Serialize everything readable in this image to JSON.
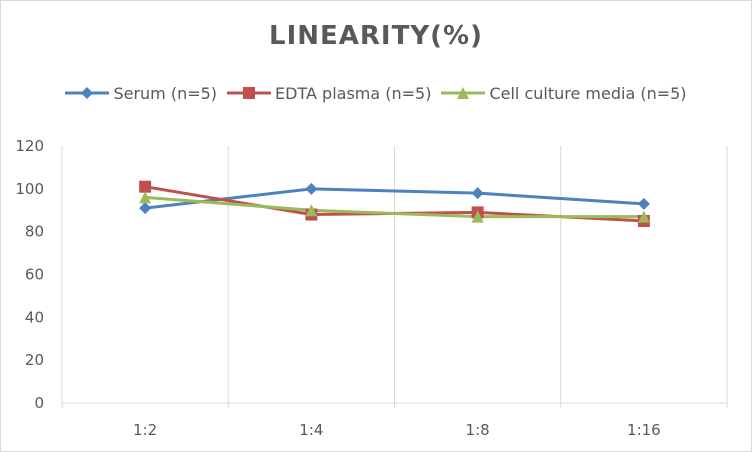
{
  "chart_data": {
    "type": "line",
    "title": "LINEARITY(%)",
    "xlabel": "",
    "ylabel": "",
    "categories": [
      "1:2",
      "1:4",
      "1:8",
      "1:16"
    ],
    "ylim": [
      0,
      120
    ],
    "yticks": [
      0,
      20,
      40,
      60,
      80,
      100,
      120
    ],
    "grid": "vertical",
    "legend_position": "top",
    "series": [
      {
        "name": "Serum (n=5)",
        "values": [
          91,
          100,
          98,
          93
        ],
        "color": "#4f81bd",
        "marker": "diamond"
      },
      {
        "name": "EDTA plasma (n=5)",
        "values": [
          101,
          88,
          89,
          85
        ],
        "color": "#c0504d",
        "marker": "square"
      },
      {
        "name": "Cell culture media (n=5)",
        "values": [
          96,
          90,
          87,
          87
        ],
        "color": "#9bbb59",
        "marker": "triangle"
      }
    ]
  }
}
